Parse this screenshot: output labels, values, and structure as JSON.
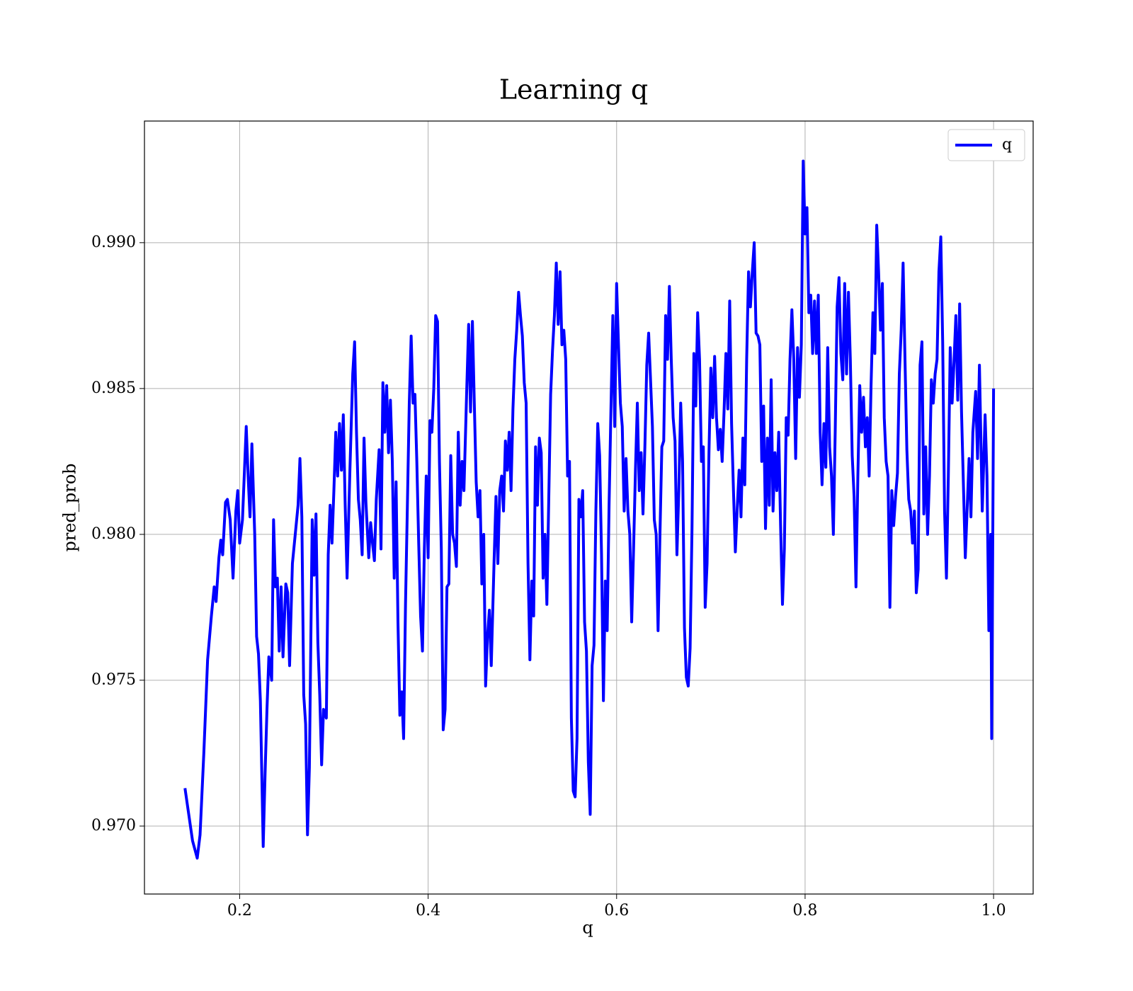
{
  "chart_data": {
    "type": "line",
    "title": "Learning q",
    "xlabel": "q",
    "ylabel": "pred_prob",
    "x": [
      0.142,
      0.15,
      0.155,
      0.158,
      0.162,
      0.166,
      0.17,
      0.173,
      0.175,
      0.178,
      0.18,
      0.182,
      0.185,
      0.187,
      0.19,
      0.193,
      0.196,
      0.198,
      0.2,
      0.203,
      0.207,
      0.209,
      0.211,
      0.213,
      0.216,
      0.218,
      0.22,
      0.222,
      0.225,
      0.227,
      0.229,
      0.231,
      0.234,
      0.236,
      0.238,
      0.24,
      0.242,
      0.244,
      0.246,
      0.249,
      0.251,
      0.253,
      0.256,
      0.259,
      0.262,
      0.264,
      0.266,
      0.268,
      0.27,
      0.272,
      0.274,
      0.277,
      0.279,
      0.281,
      0.283,
      0.285,
      0.287,
      0.289,
      0.292,
      0.294,
      0.296,
      0.298,
      0.3,
      0.302,
      0.304,
      0.306,
      0.308,
      0.31,
      0.312,
      0.314,
      0.317,
      0.32,
      0.322,
      0.324,
      0.326,
      0.328,
      0.33,
      0.332,
      0.334,
      0.337,
      0.339,
      0.341,
      0.343,
      0.345,
      0.348,
      0.35,
      0.352,
      0.354,
      0.356,
      0.358,
      0.36,
      0.362,
      0.364,
      0.366,
      0.368,
      0.37,
      0.372,
      0.374,
      0.376,
      0.378,
      0.38,
      0.382,
      0.384,
      0.386,
      0.388,
      0.39,
      0.392,
      0.394,
      0.396,
      0.398,
      0.4,
      0.402,
      0.404,
      0.406,
      0.408,
      0.41,
      0.412,
      0.414,
      0.416,
      0.418,
      0.42,
      0.422,
      0.424,
      0.426,
      0.428,
      0.43,
      0.432,
      0.434,
      0.436,
      0.438,
      0.441,
      0.443,
      0.445,
      0.447,
      0.449,
      0.451,
      0.453,
      0.455,
      0.457,
      0.459,
      0.461,
      0.463,
      0.465,
      0.467,
      0.47,
      0.472,
      0.474,
      0.476,
      0.478,
      0.48,
      0.482,
      0.484,
      0.486,
      0.488,
      0.49,
      0.492,
      0.494,
      0.496,
      0.498,
      0.5,
      0.502,
      0.504,
      0.506,
      0.508,
      0.51,
      0.512,
      0.514,
      0.516,
      0.518,
      0.52,
      0.522,
      0.524,
      0.526,
      0.528,
      0.53,
      0.532,
      0.534,
      0.536,
      0.538,
      0.54,
      0.542,
      0.544,
      0.546,
      0.548,
      0.55,
      0.552,
      0.554,
      0.556,
      0.558,
      0.56,
      0.562,
      0.564,
      0.566,
      0.568,
      0.57,
      0.572,
      0.574,
      0.576,
      0.578,
      0.58,
      0.582,
      0.584,
      0.586,
      0.588,
      0.59,
      0.592,
      0.594,
      0.596,
      0.598,
      0.6,
      0.602,
      0.604,
      0.606,
      0.608,
      0.61,
      0.612,
      0.614,
      0.616,
      0.618,
      0.62,
      0.622,
      0.624,
      0.626,
      0.628,
      0.63,
      0.632,
      0.634,
      0.636,
      0.638,
      0.64,
      0.642,
      0.644,
      0.646,
      0.648,
      0.65,
      0.652,
      0.654,
      0.656,
      0.658,
      0.66,
      0.662,
      0.664,
      0.666,
      0.668,
      0.67,
      0.672,
      0.674,
      0.676,
      0.678,
      0.68,
      0.682,
      0.684,
      0.686,
      0.688,
      0.69,
      0.692,
      0.694,
      0.696,
      0.698,
      0.7,
      0.702,
      0.704,
      0.706,
      0.708,
      0.71,
      0.712,
      0.714,
      0.716,
      0.718,
      0.72,
      0.722,
      0.724,
      0.726,
      0.728,
      0.73,
      0.732,
      0.734,
      0.736,
      0.738,
      0.74,
      0.742,
      0.744,
      0.746,
      0.748,
      0.75,
      0.752,
      0.754,
      0.756,
      0.758,
      0.76,
      0.762,
      0.764,
      0.766,
      0.768,
      0.77,
      0.772,
      0.774,
      0.776,
      0.778,
      0.78,
      0.782,
      0.784,
      0.786,
      0.788,
      0.79,
      0.792,
      0.794,
      0.796,
      0.798,
      0.8,
      0.802,
      0.804,
      0.806,
      0.808,
      0.81,
      0.812,
      0.814,
      0.816,
      0.818,
      0.82,
      0.822,
      0.824,
      0.826,
      0.828,
      0.83,
      0.832,
      0.834,
      0.836,
      0.838,
      0.84,
      0.842,
      0.844,
      0.846,
      0.848,
      0.85,
      0.852,
      0.854,
      0.856,
      0.858,
      0.86,
      0.862,
      0.864,
      0.866,
      0.868,
      0.87,
      0.872,
      0.874,
      0.876,
      0.878,
      0.88,
      0.882,
      0.884,
      0.886,
      0.888,
      0.89,
      0.892,
      0.894,
      0.896,
      0.898,
      0.9,
      0.902,
      0.904,
      0.906,
      0.908,
      0.91,
      0.912,
      0.914,
      0.916,
      0.918,
      0.92,
      0.922,
      0.924,
      0.926,
      0.928,
      0.93,
      0.932,
      0.934,
      0.936,
      0.938,
      0.94,
      0.942,
      0.944,
      0.946,
      0.948,
      0.95,
      0.952,
      0.954,
      0.956,
      0.958,
      0.96,
      0.962,
      0.964,
      0.966,
      0.97,
      0.974,
      0.976,
      0.978,
      0.981,
      0.983,
      0.985,
      0.988,
      0.991,
      0.993,
      0.995,
      0.997,
      0.998,
      1.0
    ],
    "series": [
      {
        "name": "q",
        "color": "#0000ff",
        "values": [
          0.9713,
          0.9695,
          0.9689,
          0.9697,
          0.9725,
          0.9757,
          0.9772,
          0.9782,
          0.9777,
          0.9792,
          0.9798,
          0.9793,
          0.9811,
          0.9812,
          0.9805,
          0.9785,
          0.9808,
          0.9815,
          0.9797,
          0.9805,
          0.9837,
          0.982,
          0.9806,
          0.9831,
          0.98,
          0.9765,
          0.9759,
          0.9743,
          0.9693,
          0.9718,
          0.974,
          0.9758,
          0.975,
          0.9805,
          0.9782,
          0.9785,
          0.976,
          0.9782,
          0.9758,
          0.9783,
          0.978,
          0.9755,
          0.979,
          0.98,
          0.981,
          0.9826,
          0.9806,
          0.9745,
          0.9735,
          0.9697,
          0.972,
          0.9805,
          0.9786,
          0.9807,
          0.9763,
          0.9745,
          0.9721,
          0.974,
          0.9737,
          0.9793,
          0.981,
          0.9797,
          0.9815,
          0.9835,
          0.982,
          0.9838,
          0.9822,
          0.9841,
          0.981,
          0.9785,
          0.9822,
          0.9855,
          0.9866,
          0.9835,
          0.9812,
          0.9805,
          0.9793,
          0.9833,
          0.9811,
          0.9792,
          0.9804,
          0.9797,
          0.9791,
          0.9812,
          0.9829,
          0.9795,
          0.9852,
          0.9835,
          0.9851,
          0.9828,
          0.9846,
          0.9825,
          0.9785,
          0.9818,
          0.977,
          0.9738,
          0.9746,
          0.973,
          0.9776,
          0.981,
          0.9845,
          0.9868,
          0.9845,
          0.9848,
          0.9825,
          0.9797,
          0.9772,
          0.976,
          0.9795,
          0.982,
          0.9792,
          0.9839,
          0.9835,
          0.985,
          0.9875,
          0.9873,
          0.9825,
          0.9795,
          0.9733,
          0.974,
          0.9782,
          0.9783,
          0.9827,
          0.98,
          0.9797,
          0.9789,
          0.9835,
          0.981,
          0.9825,
          0.9815,
          0.985,
          0.9872,
          0.9842,
          0.9873,
          0.9845,
          0.9818,
          0.9806,
          0.9815,
          0.9783,
          0.98,
          0.9748,
          0.9765,
          0.9774,
          0.9755,
          0.9791,
          0.9813,
          0.979,
          0.9815,
          0.982,
          0.9808,
          0.9832,
          0.9822,
          0.9835,
          0.9815,
          0.9843,
          0.986,
          0.987,
          0.9883,
          0.9875,
          0.9868,
          0.9852,
          0.9845,
          0.979,
          0.9757,
          0.9784,
          0.9772,
          0.983,
          0.981,
          0.9833,
          0.9828,
          0.9785,
          0.98,
          0.9776,
          0.9812,
          0.9848,
          0.9863,
          0.9875,
          0.9893,
          0.9872,
          0.989,
          0.9865,
          0.987,
          0.986,
          0.982,
          0.9825,
          0.9737,
          0.9712,
          0.971,
          0.973,
          0.9812,
          0.9806,
          0.9815,
          0.977,
          0.976,
          0.9722,
          0.9704,
          0.9755,
          0.9762,
          0.9808,
          0.9838,
          0.9827,
          0.9793,
          0.9743,
          0.9784,
          0.9767,
          0.981,
          0.9843,
          0.9875,
          0.9837,
          0.9886,
          0.9865,
          0.9845,
          0.9837,
          0.9808,
          0.9826,
          0.9808,
          0.98,
          0.977,
          0.9795,
          0.9822,
          0.9845,
          0.9815,
          0.9828,
          0.9807,
          0.983,
          0.9858,
          0.9869,
          0.9853,
          0.9837,
          0.9805,
          0.98,
          0.9767,
          0.98,
          0.983,
          0.9832,
          0.9875,
          0.986,
          0.9885,
          0.986,
          0.984,
          0.9832,
          0.9793,
          0.9815,
          0.9845,
          0.9825,
          0.9768,
          0.9751,
          0.9748,
          0.9761,
          0.9802,
          0.9862,
          0.9844,
          0.9876,
          0.986,
          0.9825,
          0.983,
          0.9775,
          0.979,
          0.9828,
          0.9857,
          0.984,
          0.9861,
          0.984,
          0.9829,
          0.9836,
          0.9825,
          0.9842,
          0.9862,
          0.9843,
          0.988,
          0.9838,
          0.9815,
          0.9794,
          0.9809,
          0.9822,
          0.9806,
          0.9833,
          0.9817,
          0.986,
          0.989,
          0.9878,
          0.989,
          0.99,
          0.9869,
          0.9868,
          0.9865,
          0.9825,
          0.9844,
          0.9802,
          0.9833,
          0.981,
          0.9853,
          0.9808,
          0.9828,
          0.9815,
          0.9835,
          0.9803,
          0.9776,
          0.9795,
          0.984,
          0.9834,
          0.986,
          0.9877,
          0.986,
          0.9826,
          0.9864,
          0.9847,
          0.9865,
          0.9928,
          0.9903,
          0.9912,
          0.9876,
          0.9882,
          0.9862,
          0.988,
          0.9862,
          0.9882,
          0.9835,
          0.9817,
          0.9838,
          0.9823,
          0.9864,
          0.983,
          0.982,
          0.98,
          0.9836,
          0.9878,
          0.9888,
          0.9862,
          0.9853,
          0.9886,
          0.9855,
          0.9883,
          0.986,
          0.9827,
          0.9813,
          0.9782,
          0.982,
          0.9851,
          0.9835,
          0.9847,
          0.983,
          0.984,
          0.982,
          0.9851,
          0.9876,
          0.9862,
          0.9906,
          0.989,
          0.987,
          0.9886,
          0.984,
          0.9825,
          0.982,
          0.9775,
          0.9815,
          0.9803,
          0.9813,
          0.9821,
          0.9855,
          0.987,
          0.9893,
          0.986,
          0.9829,
          0.9812,
          0.9808,
          0.9797,
          0.9808,
          0.978,
          0.9788,
          0.9858,
          0.9866,
          0.9807,
          0.983,
          0.98,
          0.982,
          0.9853,
          0.9845,
          0.9855,
          0.986,
          0.989,
          0.9902,
          0.9866,
          0.9808,
          0.9785,
          0.982,
          0.9864,
          0.9845,
          0.9859,
          0.9875,
          0.9846,
          0.9879,
          0.9842,
          0.9792,
          0.9826,
          0.9806,
          0.9835,
          0.9849,
          0.9826,
          0.9858,
          0.9808,
          0.9841,
          0.982,
          0.9767,
          0.98,
          0.973,
          0.985
        ]
      }
    ],
    "xlim": [
      0.099,
      1.042
    ],
    "ylim": [
      0.96767,
      0.99417
    ],
    "xticks": [
      0.2,
      0.4,
      0.6,
      0.8,
      {
        "value": 1,
        "label": "1.0"
      }
    ],
    "yticks": [
      {
        "value": 0.97,
        "label": "0.970"
      },
      {
        "value": 0.975,
        "label": "0.975"
      },
      {
        "value": 0.98,
        "label": "0.980"
      },
      {
        "value": 0.985,
        "label": "0.985"
      },
      {
        "value": 0.99,
        "label": "0.990"
      }
    ],
    "grid": true,
    "legend": "upper right"
  }
}
